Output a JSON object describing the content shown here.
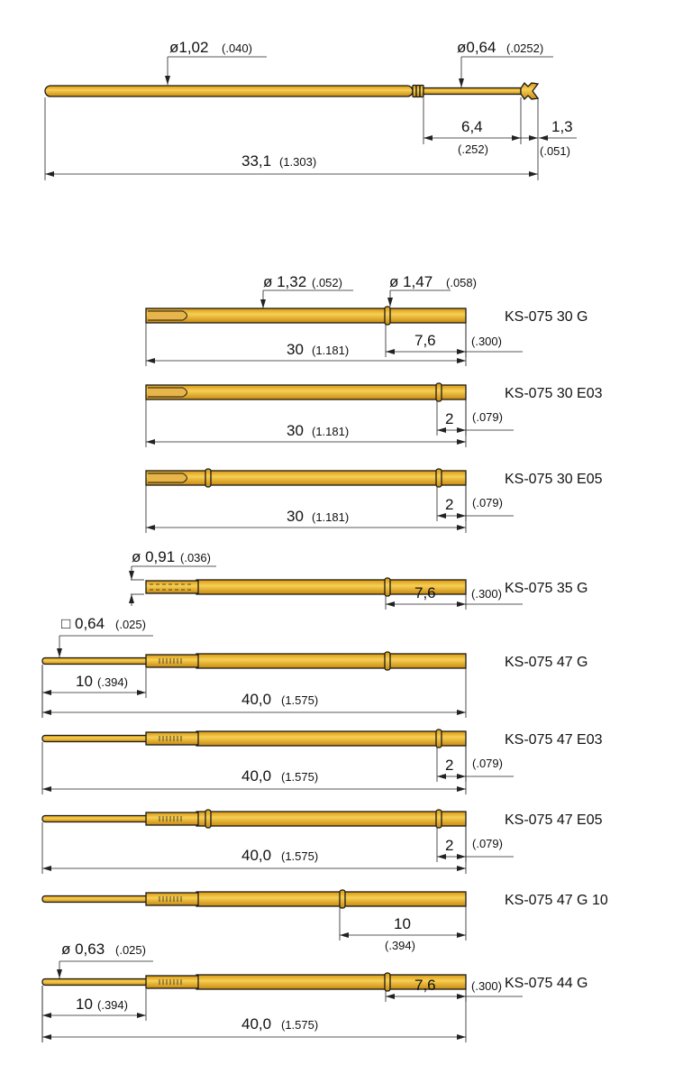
{
  "top_pin": {
    "body_diameter": "ø1,02",
    "body_diameter_in": "(.040)",
    "tip_diameter": "ø0,64",
    "tip_diameter_in": "(.0252)",
    "tip_length": "6,4",
    "tip_length_in": "(.252)",
    "crown_length": "1,3",
    "crown_length_in": "(.051)",
    "total_length": "33,1",
    "total_length_in": "(1.303)"
  },
  "receptacles": [
    {
      "model": "KS-075 30 G",
      "d_body": "ø 1,32",
      "d_body_in": "(.052)",
      "d_ring": "ø 1,47",
      "d_ring_in": "(.058)",
      "length": "30",
      "length_in": "(1.181)",
      "ring_pos": "7,6",
      "ring_pos_in": "(.300)"
    },
    {
      "model": "KS-075 30 E03",
      "length": "30",
      "length_in": "(1.181)",
      "ring_pos": "2",
      "ring_pos_in": "(.079)"
    },
    {
      "model": "KS-075 30 E05",
      "length": "30",
      "length_in": "(1.181)",
      "ring_pos": "2",
      "ring_pos_in": "(.079)"
    },
    {
      "model": "KS-075 35 G",
      "d_head": "ø 0,91",
      "d_head_in": "(.036)",
      "ring_pos": "7,6",
      "ring_pos_in": "(.300)"
    },
    {
      "model": "KS-075 47 G",
      "d_tip": "□ 0,64",
      "d_tip_in": "(.025)",
      "tip_len": "10",
      "tip_len_in": "(.394)",
      "length": "40,0",
      "length_in": "(1.575)"
    },
    {
      "model": "KS-075 47 E03",
      "length": "40,0",
      "length_in": "(1.575)",
      "ring_pos": "2",
      "ring_pos_in": "(.079)"
    },
    {
      "model": "KS-075 47 E05",
      "length": "40,0",
      "length_in": "(1.575)",
      "ring_pos": "2",
      "ring_pos_in": "(.079)"
    },
    {
      "model": "KS-075 47 G 10",
      "ring_pos": "10",
      "ring_pos_in": "(.394)"
    },
    {
      "model": "KS-075 44 G",
      "d_tip": "ø 0,63",
      "d_tip_in": "(.025)",
      "tip_len": "10",
      "tip_len_in": "(.394)",
      "length": "40,0",
      "length_in": "(1.575)",
      "ring_pos": "7,6",
      "ring_pos_in": "(.300)"
    }
  ],
  "colors": {
    "gold_dark": "#c98a0e",
    "gold_light": "#f7cf55",
    "outline": "#1a1a1a"
  }
}
